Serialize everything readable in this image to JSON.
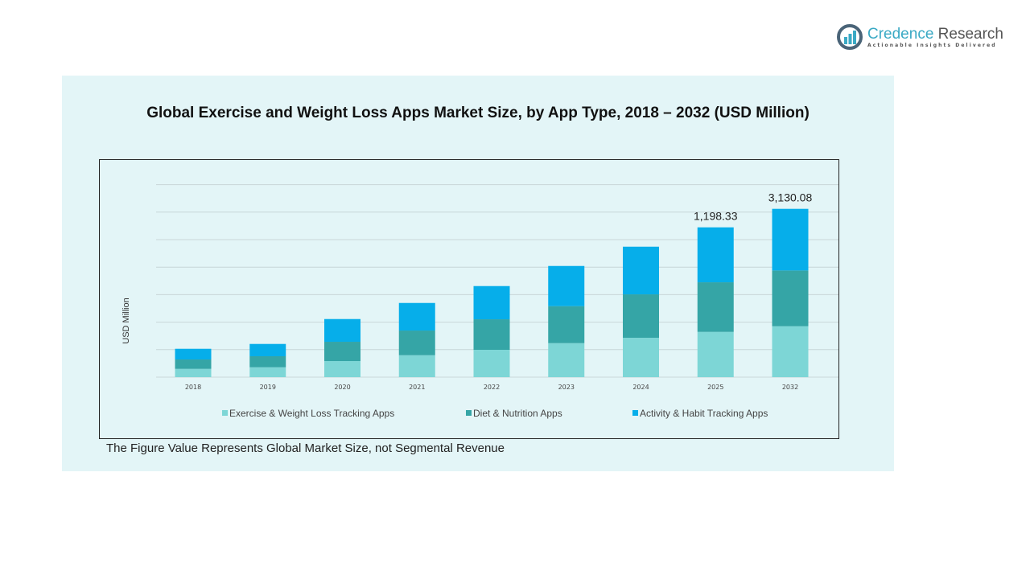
{
  "brand": {
    "name_part1": "Credence",
    "name_part2": "Research",
    "tagline": "Actionable Insights Delivered"
  },
  "footnote": "The Figure Value Represents Global Market Size, not Segmental Revenue",
  "chart_data": {
    "type": "bar",
    "stacked": true,
    "title": "Global Exercise and Weight Loss Apps Market Size, by App Type, 2018 – 2032 (USD Million)",
    "xlabel": "",
    "ylabel": "USD Million",
    "grid": true,
    "y_tick_labels_shown": false,
    "legend_position": "bottom",
    "categories": [
      "2018",
      "2019",
      "2020",
      "2021",
      "2022",
      "2023",
      "2024",
      "2025",
      "2032"
    ],
    "series": [
      {
        "name": "Exercise & Weight Loss Tracking Apps",
        "color": "#7dd6d6",
        "values": [
          66.2,
          79.1,
          128.6,
          175.5,
          218.6,
          272.0,
          315.1,
          362.0,
          947.0
        ]
      },
      {
        "name": "Diet & Nutrition Apps",
        "color": "#35a5a6",
        "values": [
          75.2,
          88.1,
          154.3,
          197.4,
          244.3,
          295.8,
          347.2,
          396.7,
          1036.5
        ]
      },
      {
        "name": "Activity & Habit Tracking Apps",
        "color": "#06aeea",
        "values": [
          85.5,
          98.4,
          182.0,
          220.5,
          265.6,
          321.5,
          381.3,
          439.63,
          1146.58
        ]
      }
    ],
    "data_labels": {
      "2025": "1,198.33",
      "2032": "3,130.08"
    },
    "axis_break_before_last": true
  }
}
